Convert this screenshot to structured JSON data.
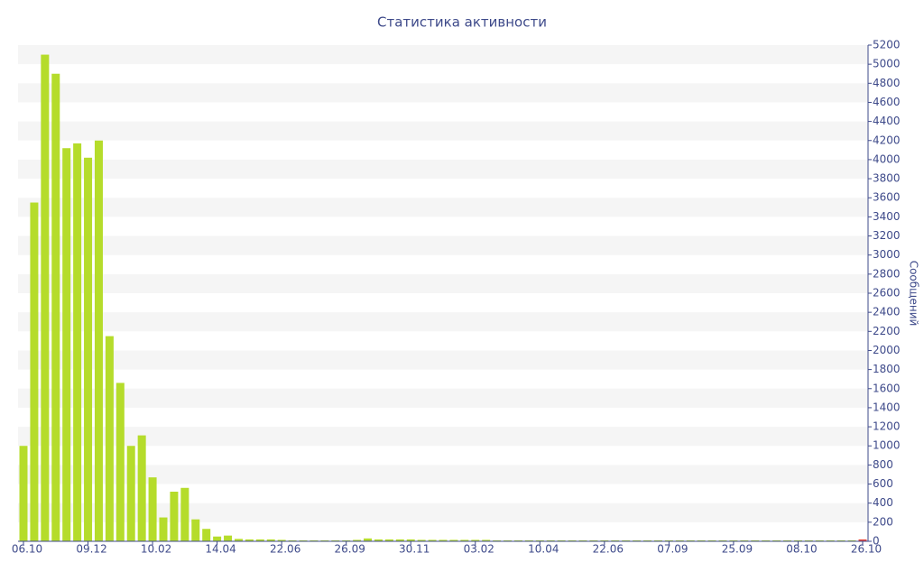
{
  "chart_data": {
    "type": "bar",
    "title": "Статистика активности",
    "y_axis_label": "Сообщений",
    "categories": [
      "06.10",
      null,
      null,
      null,
      null,
      null,
      "09.12",
      null,
      null,
      null,
      null,
      null,
      "10.02",
      null,
      null,
      null,
      null,
      null,
      "14.04",
      null,
      null,
      null,
      null,
      null,
      "22.06",
      null,
      null,
      null,
      null,
      null,
      "26.09",
      null,
      null,
      null,
      null,
      null,
      "30.11",
      null,
      null,
      null,
      null,
      null,
      "03.02",
      null,
      null,
      null,
      null,
      null,
      "10.04",
      null,
      null,
      null,
      null,
      null,
      "22.06",
      null,
      null,
      null,
      null,
      null,
      "07.09",
      null,
      null,
      null,
      null,
      null,
      "25.09",
      null,
      null,
      null,
      null,
      null,
      "08.10",
      null,
      null,
      null,
      null,
      null,
      "26.10"
    ],
    "values": [
      1000,
      3550,
      5100,
      4900,
      4120,
      4170,
      4020,
      4200,
      2150,
      1660,
      1000,
      1110,
      670,
      250,
      520,
      560,
      230,
      130,
      50,
      60,
      25,
      20,
      20,
      20,
      15,
      10,
      10,
      10,
      10,
      10,
      10,
      15,
      30,
      20,
      20,
      20,
      20,
      15,
      15,
      15,
      15,
      15,
      15,
      15,
      10,
      10,
      10,
      10,
      10,
      10,
      10,
      10,
      10,
      10,
      10,
      10,
      10,
      10,
      10,
      10,
      10,
      10,
      10,
      10,
      10,
      10,
      10,
      10,
      10,
      10,
      10,
      10,
      10,
      10,
      10,
      10,
      10,
      10,
      20
    ],
    "color": "#b5dc2b",
    "last_bar_color": "#e8473c",
    "ylim": [
      0,
      5200
    ],
    "yticks": [
      0,
      200,
      400,
      600,
      800,
      1000,
      1200,
      1400,
      1600,
      1800,
      2000,
      2200,
      2400,
      2600,
      2800,
      3000,
      3200,
      3400,
      3600,
      3800,
      4000,
      4200,
      4400,
      4600,
      4800,
      5000,
      5200
    ],
    "grid": "bands",
    "y_axis_side": "right"
  }
}
